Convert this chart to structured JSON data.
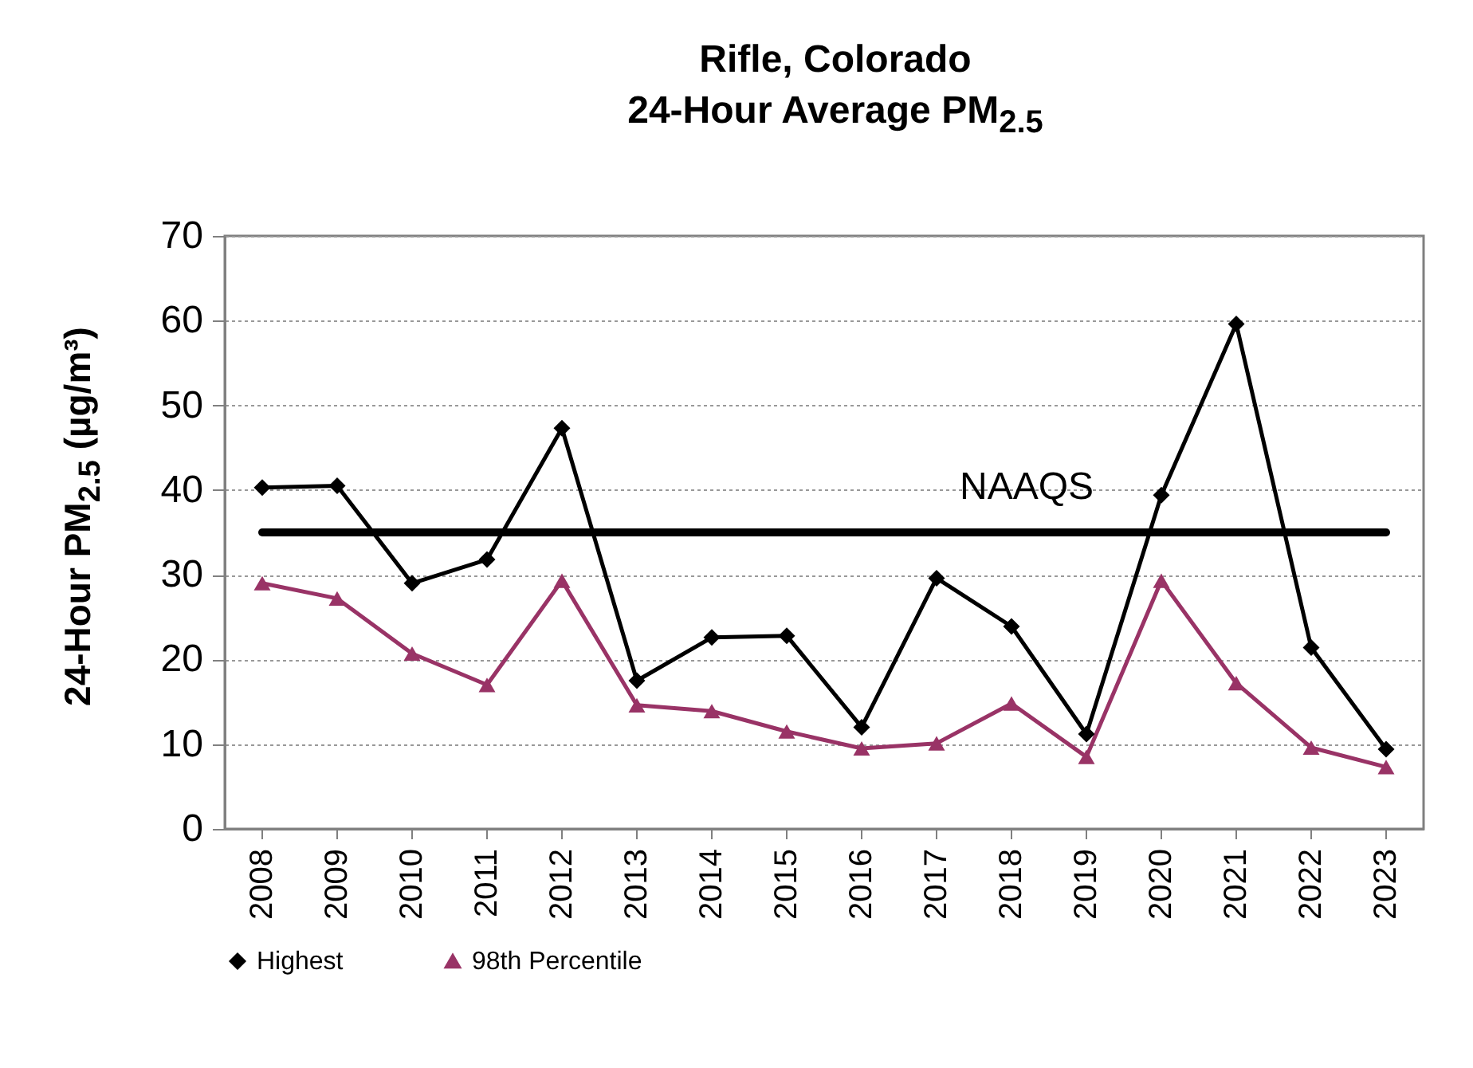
{
  "chart_data": {
    "type": "line",
    "title": "Rifle, Colorado",
    "subtitle": "24-Hour Average PM$_{2.5}$",
    "ylabel": "24-Hour PM$_{2.5}$ (µg/m³)",
    "categories": [
      "2008",
      "2009",
      "2010",
      "2011",
      "2012",
      "2013",
      "2014",
      "2015",
      "2016",
      "2017",
      "2018",
      "2019",
      "2020",
      "2021",
      "2022",
      "2023"
    ],
    "series": [
      {
        "name": "Highest",
        "color": "#000000",
        "marker": "diamond",
        "values": [
          40.3,
          40.5,
          29,
          31.8,
          47.3,
          17.5,
          22.6,
          22.8,
          12,
          29.6,
          23.9,
          11.2,
          39.4,
          59.6,
          21.4,
          9.4
        ]
      },
      {
        "name": "98th Percentile",
        "color": "#993366",
        "marker": "triangle",
        "values": [
          29,
          27.2,
          20.7,
          17,
          29.3,
          14.6,
          13.9,
          11.5,
          9.5,
          10.1,
          14.8,
          8.5,
          29.3,
          17.2,
          9.6,
          7.3
        ]
      }
    ],
    "ref_lines": [
      {
        "axis": "y",
        "value": 35,
        "label": "NAAQS",
        "color": "#000000"
      }
    ],
    "ylim": [
      0,
      70
    ],
    "yticks": [
      0,
      10,
      20,
      30,
      40,
      50,
      60,
      70
    ],
    "grid": "y",
    "legend": "bottom",
    "line_style": "solid"
  }
}
